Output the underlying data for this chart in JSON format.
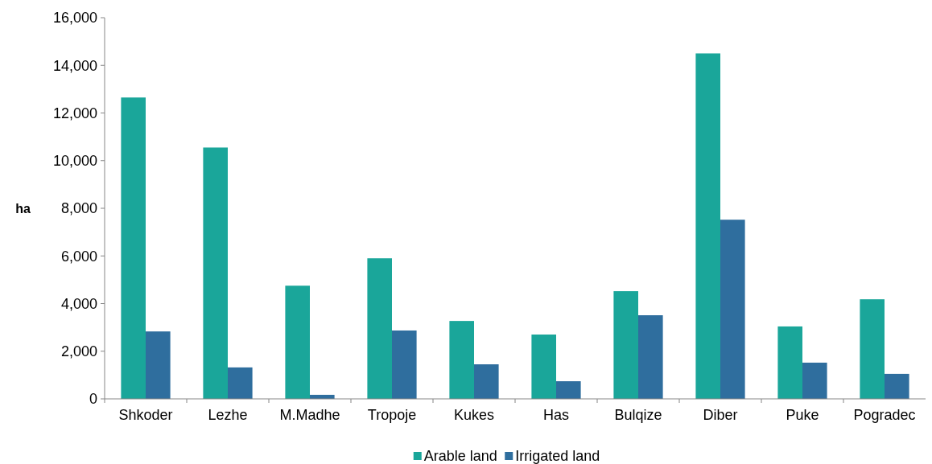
{
  "chart_data": {
    "type": "bar",
    "ylabel": "ha",
    "categories": [
      "Shkoder",
      "Lezhe",
      "M.Madhe",
      "Tropoje",
      "Kukes",
      "Has",
      "Bulqize",
      "Diber",
      "Puke",
      "Pogradec"
    ],
    "series": [
      {
        "name": "Arable land",
        "color": "#1aa69a",
        "values": [
          12650,
          10550,
          4750,
          5900,
          3270,
          2700,
          4520,
          14500,
          3040,
          4180
        ]
      },
      {
        "name": "Irrigated land",
        "color": "#2f6e9e",
        "values": [
          2830,
          1320,
          170,
          2870,
          1450,
          740,
          3510,
          7520,
          1520,
          1050
        ]
      }
    ],
    "ylim": [
      0,
      16000
    ],
    "yticks": [
      {
        "value": 0,
        "label": "0"
      },
      {
        "value": 2000,
        "label": "2,000"
      },
      {
        "value": 4000,
        "label": "4,000"
      },
      {
        "value": 6000,
        "label": "6,000"
      },
      {
        "value": 8000,
        "label": "8,000"
      },
      {
        "value": 10000,
        "label": "10,000"
      },
      {
        "value": 12000,
        "label": "12,000"
      },
      {
        "value": 14000,
        "label": "14,000"
      },
      {
        "value": 16000,
        "label": "16,000"
      }
    ],
    "grid": false,
    "legend": "bottom"
  }
}
